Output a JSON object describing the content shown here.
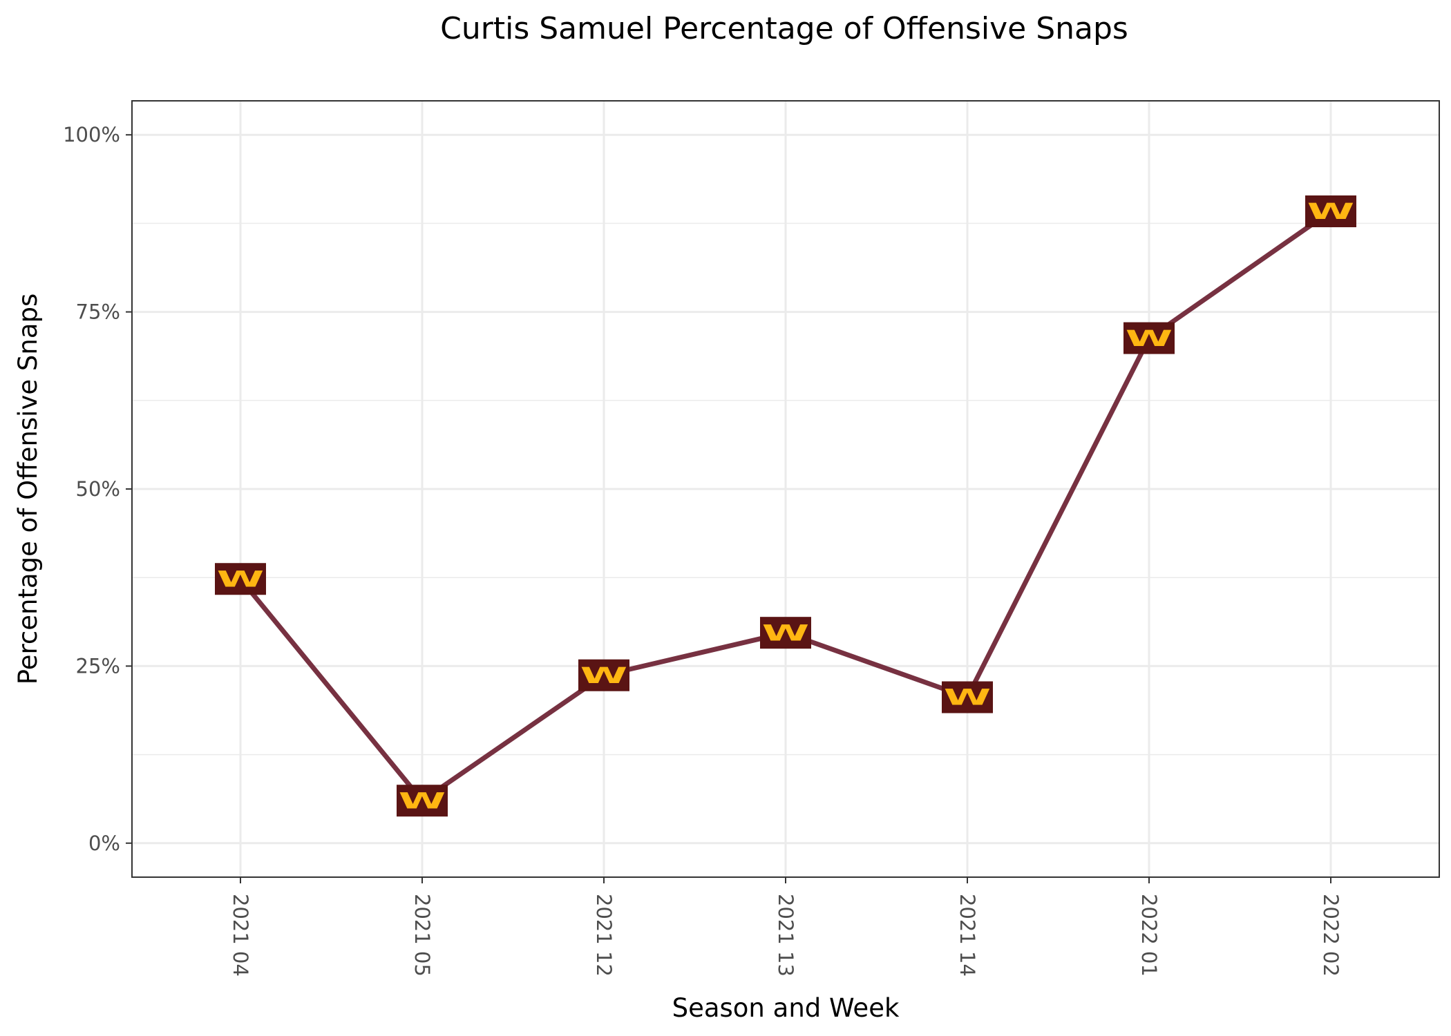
{
  "chart_data": {
    "type": "line",
    "title": "Curtis Samuel Percentage of Offensive Snaps",
    "xlabel": "Season and Week",
    "ylabel": "Percentage of Offensive Snaps",
    "categories": [
      "2021 04",
      "2021 05",
      "2021 12",
      "2021 13",
      "2021 14",
      "2022 01",
      "2022 02"
    ],
    "series": [
      {
        "values": [
          37.3,
          6.0,
          23.7,
          29.7,
          20.6,
          71.3,
          89.2
        ]
      }
    ],
    "ylim": [
      -4.8,
      104.8
    ],
    "y_ticks": [
      0,
      25,
      50,
      75,
      100
    ],
    "y_tick_labels": [
      "0%",
      "25%",
      "50%",
      "75%",
      "100%"
    ],
    "x_tick_rotation": "90deg clockwise",
    "grid": true,
    "legend": "none",
    "marker_icon": "washington-w-logo-icon",
    "marker_letter": "W",
    "colors": {
      "line": "#773141",
      "marker_background": "#5a1414",
      "marker_letter": "#ffb612",
      "grid": "#ebebeb",
      "panel_border": "#333333",
      "tick_text": "#4d4d4d"
    }
  }
}
